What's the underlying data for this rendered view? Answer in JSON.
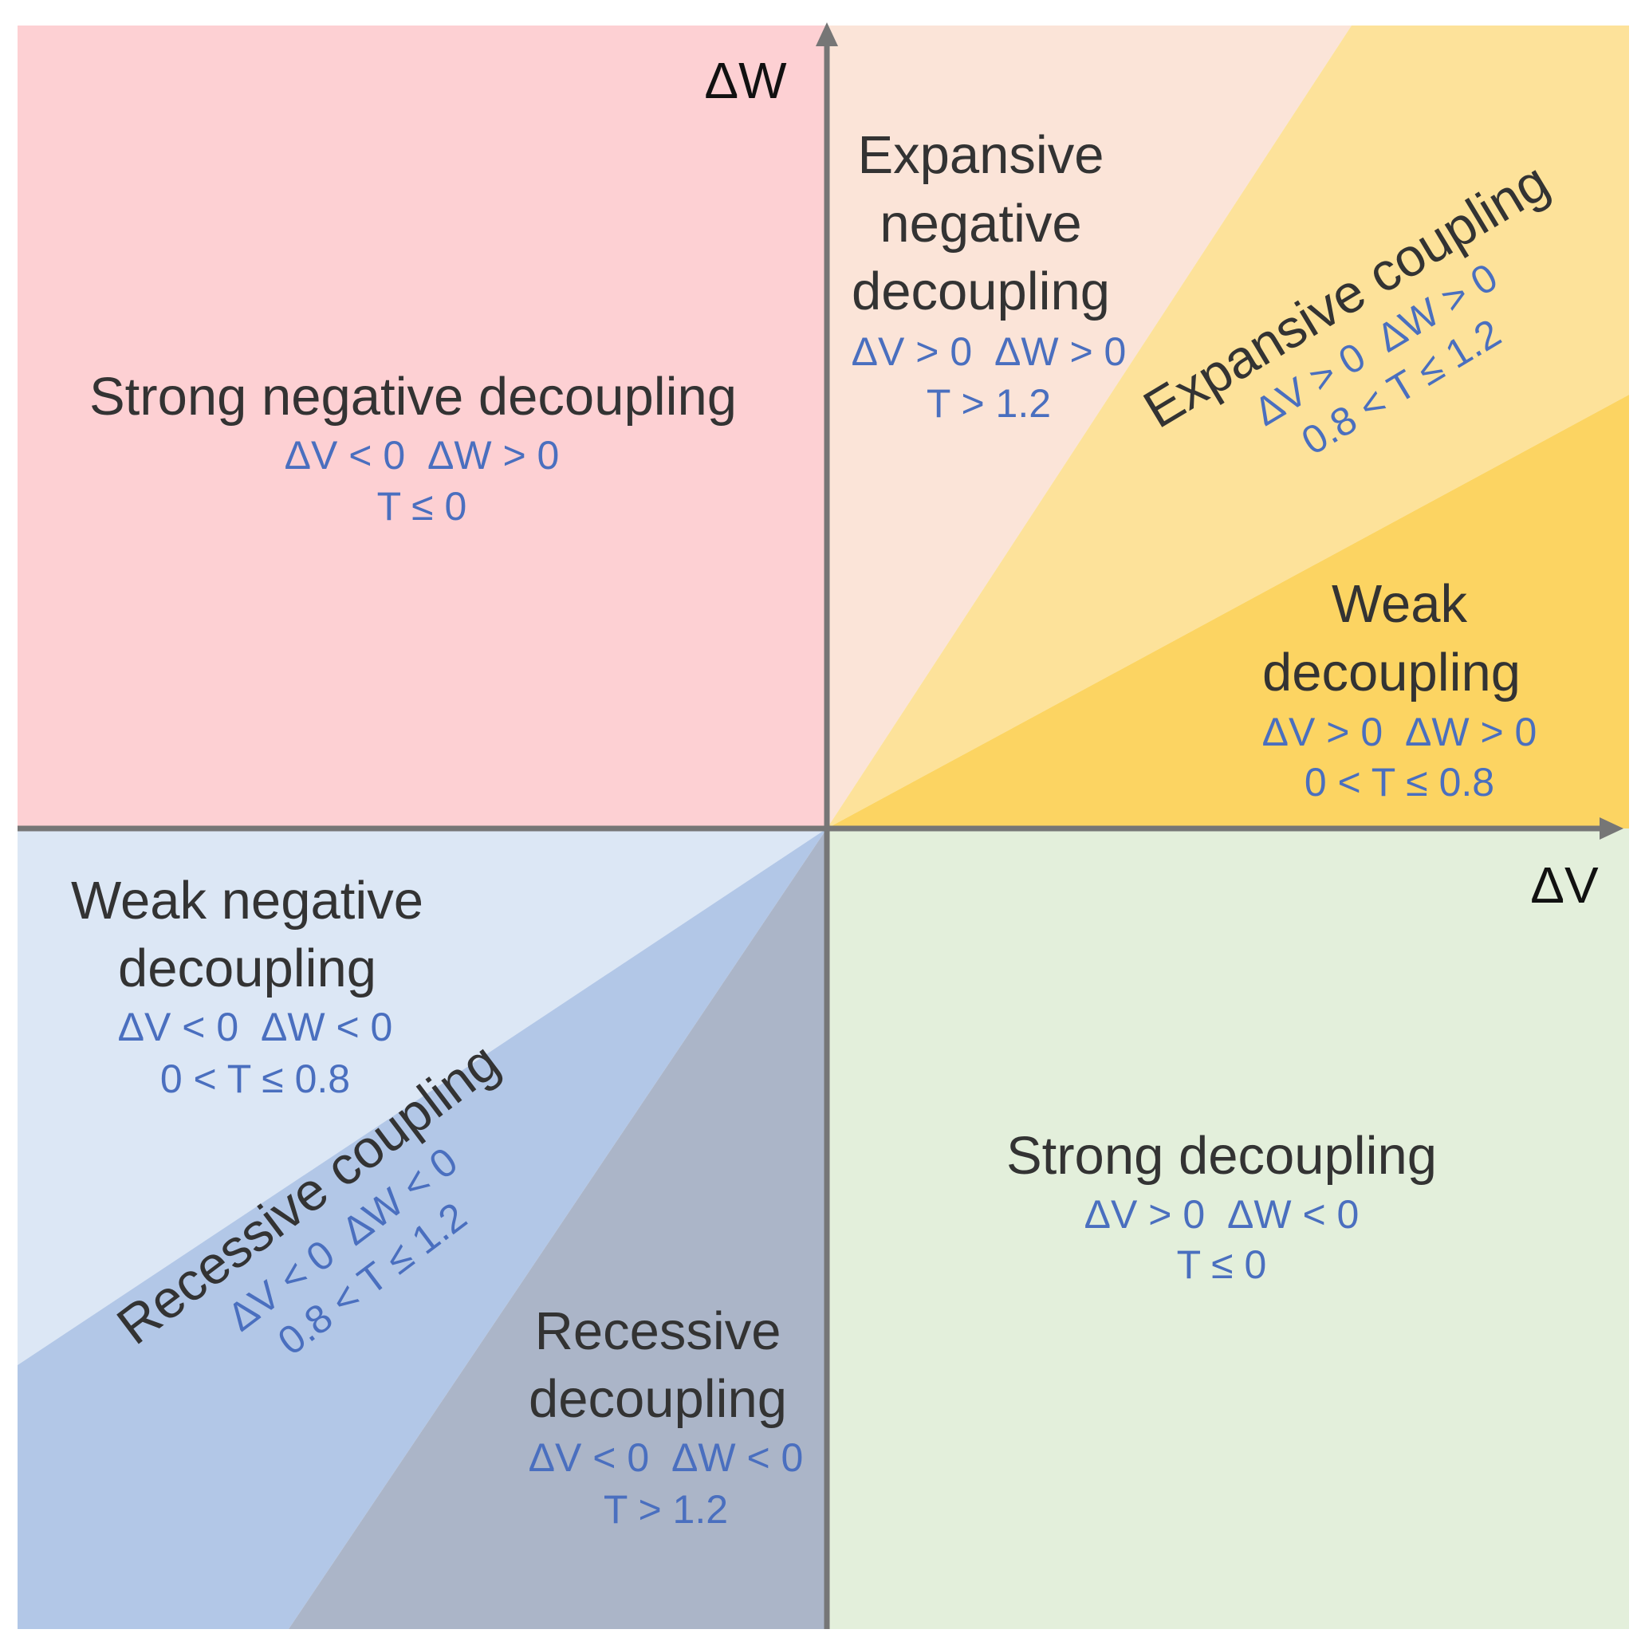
{
  "axes": {
    "x_label": "ΔV",
    "y_label": "ΔW"
  },
  "colors": {
    "strong_negative_decoupling": "#fdd0d3",
    "expansive_negative_decoupling": "#fbe4d8",
    "expansive_coupling": "#fde29a",
    "weak_decoupling": "#fcd462",
    "weak_negative_decoupling": "#dce7f5",
    "recessive_coupling": "#b2c7e7",
    "recessive_decoupling": "#abb5c8",
    "strong_decoupling": "#e3efdb",
    "axis": "#767676",
    "condition_text": "#4a6fbf",
    "title_text": "#333333"
  },
  "regions": {
    "strong_negative_decoupling": {
      "title": [
        "Strong negative decoupling"
      ],
      "condition": "ΔV < 0  ΔW > 0",
      "threshold": "T ≤ 0"
    },
    "expansive_negative_decoupling": {
      "title": [
        "Expansive",
        "negative",
        "decoupling"
      ],
      "condition": "ΔV > 0  ΔW > 0",
      "threshold": "T > 1.2"
    },
    "expansive_coupling": {
      "title": [
        "Expansive coupling"
      ],
      "condition": "ΔV > 0  ΔW > 0",
      "threshold": "0.8 < T ≤ 1.2"
    },
    "weak_decoupling": {
      "title": [
        "Weak",
        "decoupling"
      ],
      "condition": "ΔV > 0  ΔW > 0",
      "threshold": "0 < T ≤ 0.8"
    },
    "weak_negative_decoupling": {
      "title": [
        "Weak negative",
        "decoupling"
      ],
      "condition": "ΔV < 0  ΔW < 0",
      "threshold": "0 < T ≤ 0.8"
    },
    "recessive_coupling": {
      "title": [
        "Recessive coupling"
      ],
      "condition": "ΔV < 0  ΔW < 0",
      "threshold": "0.8 < T ≤ 1.2"
    },
    "recessive_decoupling": {
      "title": [
        "Recessive",
        "decoupling"
      ],
      "condition": "ΔV < 0  ΔW < 0",
      "threshold": "T > 1.2"
    },
    "strong_decoupling": {
      "title": [
        "Strong decoupling"
      ],
      "condition": "ΔV > 0  ΔW < 0",
      "threshold": "T ≤ 0"
    }
  }
}
